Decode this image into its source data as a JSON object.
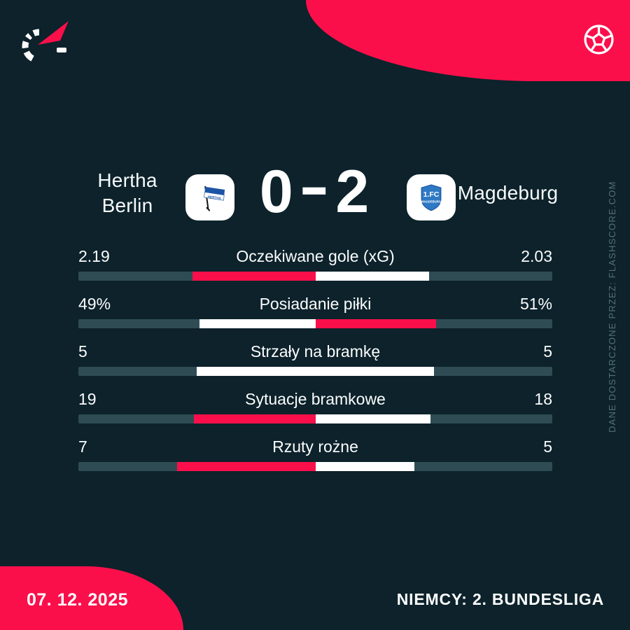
{
  "match": {
    "home": {
      "name": "Hertha Berlin",
      "name_lines": [
        "Hertha",
        "Berlin"
      ]
    },
    "away": {
      "name": "Magdeburg"
    },
    "score": {
      "home": "0",
      "separator": "-",
      "away": "2"
    }
  },
  "stats": [
    {
      "label": "Oczekiwane gole (xG)",
      "home": "2.19",
      "away": "2.03",
      "home_val": 2.19,
      "away_val": 2.03
    },
    {
      "label": "Posiadanie piłki",
      "home": "49%",
      "away": "51%",
      "home_val": 49,
      "away_val": 51
    },
    {
      "label": "Strzały na bramkę",
      "home": "5",
      "away": "5",
      "home_val": 5,
      "away_val": 5
    },
    {
      "label": "Sytuacje bramkowe",
      "home": "19",
      "away": "18",
      "home_val": 19,
      "away_val": 18
    },
    {
      "label": "Rzuty rożne",
      "home": "7",
      "away": "5",
      "home_val": 7,
      "away_val": 5
    }
  ],
  "chart_data": {
    "type": "bar",
    "title": "Hertha Berlin 0-2 Magdeburg — match statistics",
    "categories": [
      "Oczekiwane gole (xG)",
      "Posiadanie piłki",
      "Strzały na bramkę",
      "Sytuacje bramkowe",
      "Rzuty rożne"
    ],
    "series": [
      {
        "name": "Hertha Berlin",
        "values": [
          2.19,
          49,
          5,
          19,
          7
        ]
      },
      {
        "name": "Magdeburg",
        "values": [
          2.03,
          51,
          5,
          18,
          5
        ]
      }
    ],
    "layout": "paired horizontal bars growing outward from center; leading value colored accent red, other white, tie both white",
    "legend_position": "none",
    "grid": false
  },
  "footer": {
    "date": "07. 12. 2025",
    "league": "NIEMCY: 2. BUNDESLIGA"
  },
  "attribution": "DANE DOSTARCZONE PRZEZ: FLASHSCORE.COM",
  "icons": {
    "brand": "flashscore-stopwatch-logo",
    "header_right": "football-icon",
    "home_crest": "hertha-berlin-flag-crest",
    "away_crest": "magdeburg-shield-crest"
  },
  "colors": {
    "background": "#0d222b",
    "accent": "#fa0f4b",
    "bar_track": "#2f4c54",
    "bar_neutral": "#ffffff",
    "text": "#ffffff",
    "attribution_text": "#54707b",
    "hertha_blue": "#1c55a5",
    "magdeburg_blue": "#2e79c4"
  }
}
